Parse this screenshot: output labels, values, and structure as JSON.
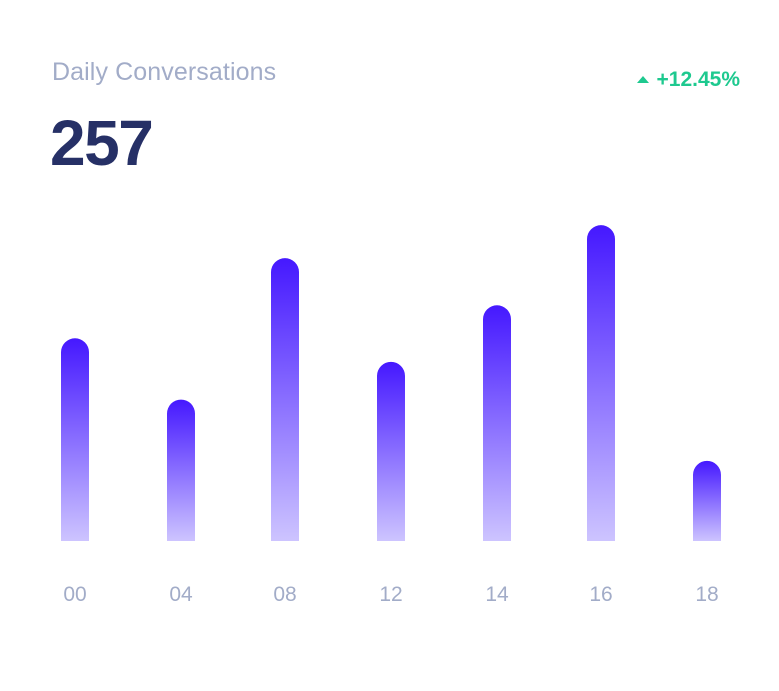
{
  "card": {
    "title": "Daily Conversations",
    "total": "257",
    "change": "+12.45%",
    "change_icon": "triangle-up-icon",
    "change_color": "#1ec98f"
  },
  "colors": {
    "bar_top": "#4518ff",
    "bar_bottom": "#cdc4ff",
    "tick_label": "#a2acc8",
    "title": "#a2acc8",
    "number": "#263066"
  },
  "chart_data": {
    "type": "bar",
    "categories": [
      "00",
      "04",
      "08",
      "12",
      "14",
      "16",
      "18"
    ],
    "values": [
      43,
      30,
      60,
      38,
      50,
      67,
      17
    ],
    "ylim": [
      0,
      70
    ],
    "grid": false,
    "legend": "none"
  }
}
